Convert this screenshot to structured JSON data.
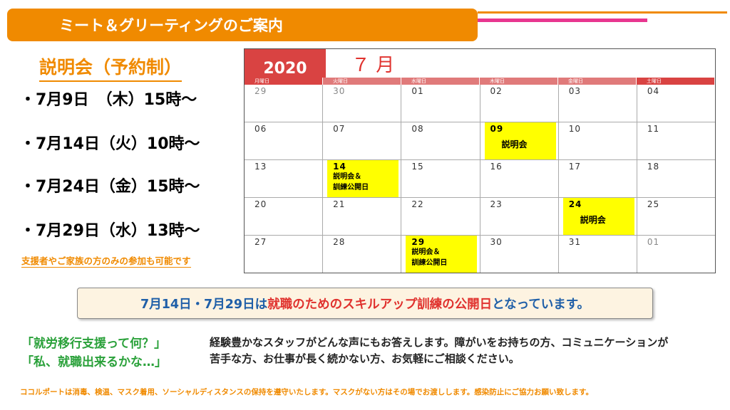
{
  "banner": {
    "title": "ミート＆グリーティングのご案内"
  },
  "sessions": {
    "heading": "説明会（予約制）",
    "items": [
      "・7月9日　（木）15時～",
      "・7月14日（火）10時～",
      "・7月24日（金）15時～",
      "・7月29日（水）13時～"
    ],
    "note": "支援者やご家族の方のみの参加も可能です"
  },
  "calendar": {
    "year": "2020",
    "month": "７ 月",
    "weekdays": [
      "月曜日",
      "火曜日",
      "水曜日",
      "木曜日",
      "金曜日",
      "土曜日"
    ],
    "weeks": [
      [
        {
          "d": "29",
          "dim": true
        },
        {
          "d": "30",
          "dim": true
        },
        {
          "d": "01"
        },
        {
          "d": "02"
        },
        {
          "d": "03"
        },
        {
          "d": "04"
        }
      ],
      [
        {
          "d": "06"
        },
        {
          "d": "07"
        },
        {
          "d": "08"
        },
        {
          "d": "09",
          "ev": "説明会",
          "big": true
        },
        {
          "d": "10"
        },
        {
          "d": "11"
        }
      ],
      [
        {
          "d": "13"
        },
        {
          "d": "14",
          "ev": "説明会＆\n訓練公開日"
        },
        {
          "d": "15"
        },
        {
          "d": "16"
        },
        {
          "d": "17"
        },
        {
          "d": "18"
        }
      ],
      [
        {
          "d": "20"
        },
        {
          "d": "21"
        },
        {
          "d": "22"
        },
        {
          "d": "23"
        },
        {
          "d": "24",
          "ev": "説明会",
          "big": true
        },
        {
          "d": "25"
        }
      ],
      [
        {
          "d": "27"
        },
        {
          "d": "28"
        },
        {
          "d": "29",
          "ev": "説明会＆\n訓練公開日"
        },
        {
          "d": "30"
        },
        {
          "d": "31"
        },
        {
          "d": "01",
          "dim": true
        }
      ]
    ]
  },
  "callout": {
    "part1": "7月14日・7月29日は",
    "part2": "就職のためのスキルアップ訓練の公開日",
    "part3": "となっています。"
  },
  "faq": {
    "q1": "「就労移行支援って何？」",
    "q2": "「私、就職出来るかな…」",
    "answer": "経験豊かなスタッフがどんな声にもお答えします。障がいをお持ちの方、コミュニケーションが苦手な方、お仕事が長く続かない方、お気軽にご相談ください。"
  },
  "footer": "ココルポートは消毒、検温、マスク着用、ソーシャルディスタンスの保持を遵守いたします。マスクがない方はその場でお渡しします。感染防止にご協力お願い致します。",
  "colors": {
    "orange": "#f08a00",
    "pink": "#e8368f",
    "red": "#e0322e",
    "blue": "#1f5fa8",
    "green": "#2aa13a",
    "highlight": "#ffff00"
  }
}
